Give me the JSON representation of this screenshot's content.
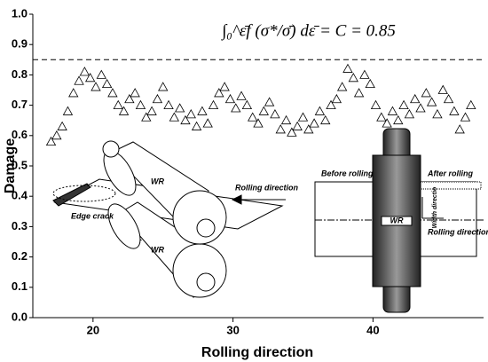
{
  "chart_data": {
    "type": "scatter",
    "x_label": "Rolling direction",
    "y_label": "Damage",
    "annotation": "∫₀^ε̄f (σ*/σ̄) dε̄ = C = 0.85",
    "reference_line": 0.85,
    "xlim": [
      15.7,
      47.9
    ],
    "ylim": [
      0,
      1
    ],
    "xticks": [
      20,
      30,
      40
    ],
    "yticks": [
      {
        "value": 0,
        "label": "0.0"
      },
      0.1,
      0.2,
      0.3,
      0.4,
      0.5,
      0.6,
      0.7,
      0.8,
      0.9,
      {
        "value": 1,
        "label": "1.0"
      }
    ],
    "marker": "triangle-open",
    "color": "#000000",
    "x": [
      17.0,
      17.4,
      17.8,
      18.2,
      18.6,
      19.0,
      19.4,
      19.8,
      20.2,
      20.6,
      21.0,
      21.4,
      21.8,
      22.2,
      22.6,
      23.0,
      23.4,
      23.8,
      24.2,
      24.6,
      25.0,
      25.4,
      25.8,
      26.2,
      26.6,
      27.0,
      27.4,
      27.8,
      28.2,
      28.6,
      29.0,
      29.4,
      29.8,
      30.2,
      30.6,
      31.0,
      31.4,
      31.8,
      32.2,
      32.6,
      33.0,
      33.4,
      33.8,
      34.2,
      34.6,
      35.0,
      35.4,
      35.8,
      36.2,
      36.6,
      37.0,
      37.4,
      37.8,
      38.2,
      38.6,
      39.0,
      39.4,
      39.8,
      40.2,
      40.6,
      41.0,
      41.4,
      41.8,
      42.2,
      42.6,
      43.0,
      43.4,
      43.8,
      44.2,
      44.6,
      45.0,
      45.4,
      45.8,
      46.2,
      46.6,
      47.0
    ],
    "values": [
      0.58,
      0.6,
      0.63,
      0.68,
      0.74,
      0.78,
      0.81,
      0.79,
      0.76,
      0.8,
      0.77,
      0.74,
      0.7,
      0.68,
      0.72,
      0.74,
      0.7,
      0.66,
      0.68,
      0.72,
      0.76,
      0.7,
      0.66,
      0.69,
      0.65,
      0.67,
      0.63,
      0.68,
      0.64,
      0.7,
      0.74,
      0.76,
      0.72,
      0.69,
      0.73,
      0.7,
      0.66,
      0.64,
      0.68,
      0.71,
      0.67,
      0.62,
      0.65,
      0.61,
      0.63,
      0.66,
      0.62,
      0.64,
      0.68,
      0.65,
      0.7,
      0.72,
      0.76,
      0.82,
      0.79,
      0.74,
      0.8,
      0.77,
      0.7,
      0.66,
      0.64,
      0.68,
      0.65,
      0.7,
      0.67,
      0.72,
      0.69,
      0.74,
      0.71,
      0.67,
      0.75,
      0.72,
      0.68,
      0.62,
      0.66,
      0.7
    ],
    "insets": {
      "left": {
        "roll_top": "WR",
        "roll_bottom": "WR",
        "arrow": "Rolling direction",
        "crack": "Edge crack"
      },
      "right": {
        "before": "Before rolling",
        "after": "After rolling",
        "roll": "WR",
        "width": "Width directio",
        "rolling": "Rolling direction"
      }
    }
  }
}
